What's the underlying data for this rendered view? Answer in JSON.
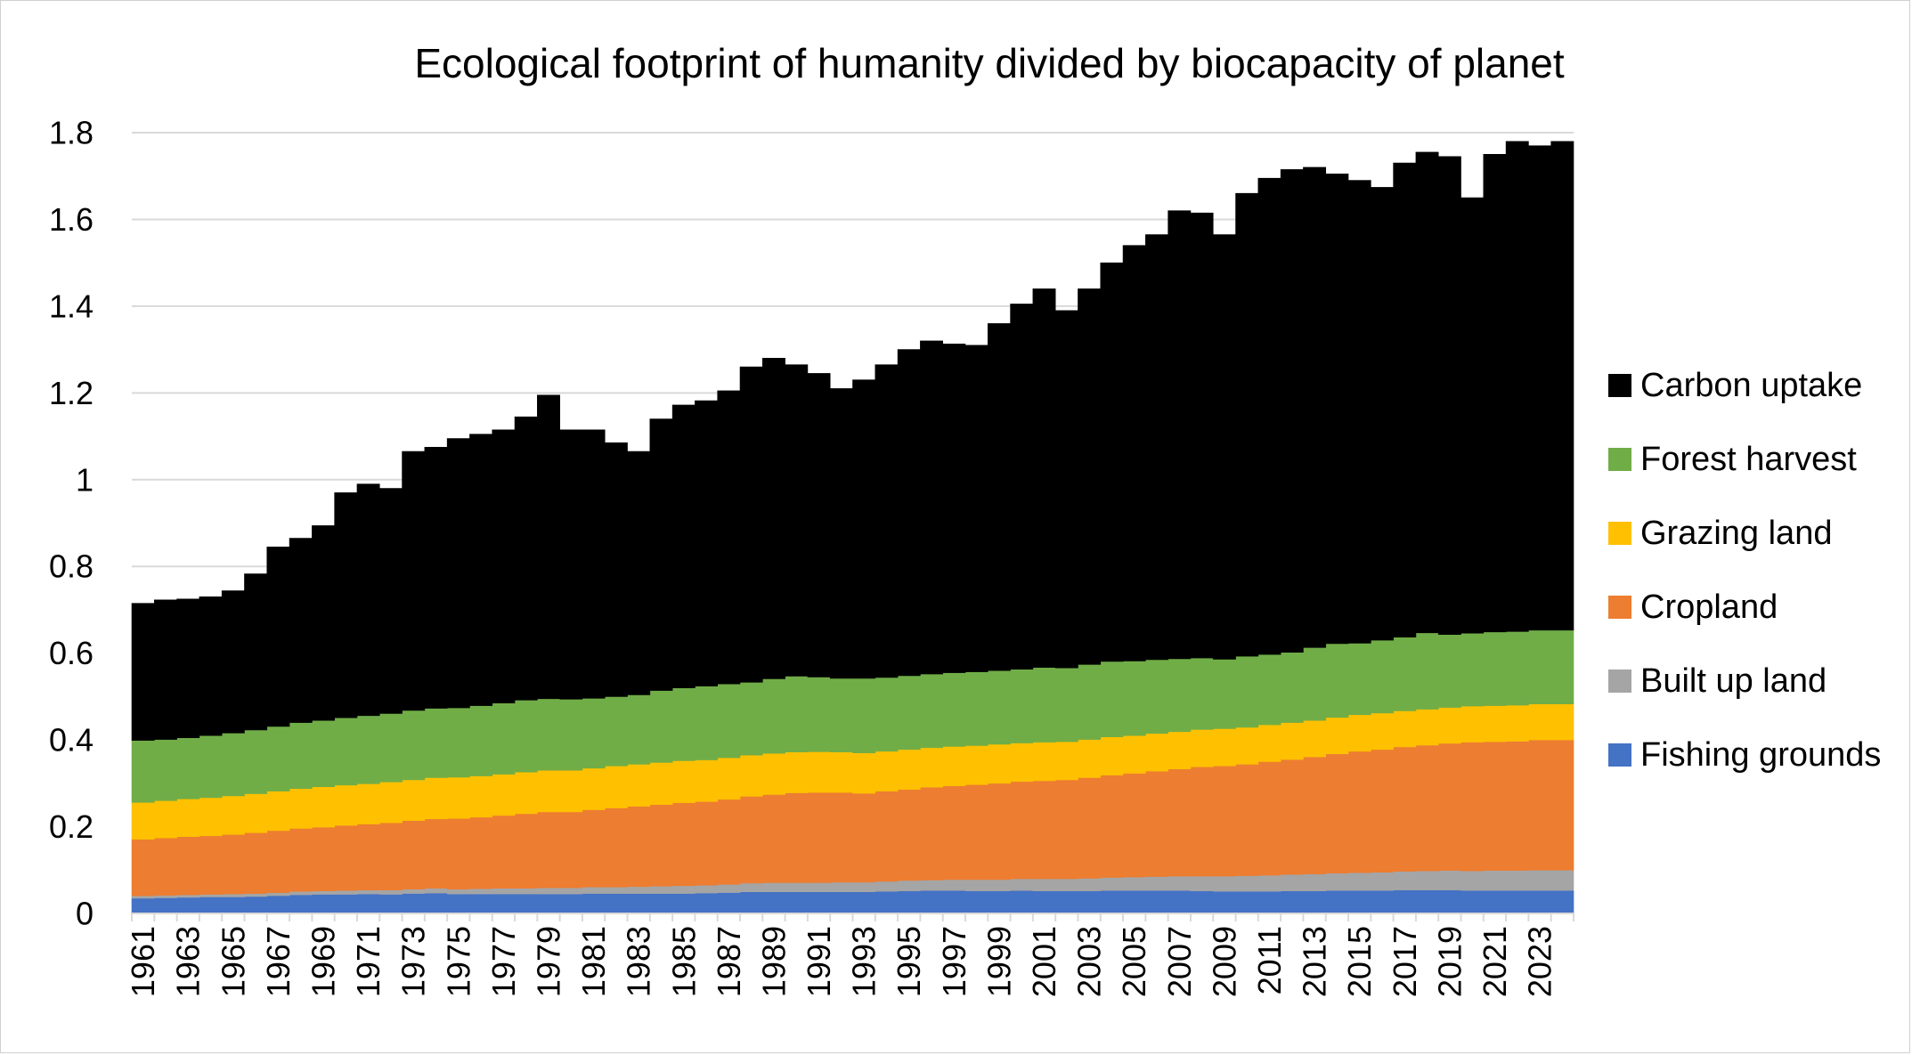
{
  "chart_data": {
    "type": "area",
    "stacked": true,
    "title": "Ecological footprint of humanity divided by biocapacity of planet",
    "xlabel": "",
    "ylabel": "",
    "ylim": [
      0,
      1.8
    ],
    "yticks": [
      0,
      0.2,
      0.4,
      0.6,
      0.8,
      1,
      1.2,
      1.4,
      1.6,
      1.8
    ],
    "ytick_labels": [
      "0",
      "0.2",
      "0.4",
      "0.6",
      "0.8",
      "1",
      "1.2",
      "1.4",
      "1.6",
      "1.8"
    ],
    "grid": "horizontal",
    "legend_position": "right",
    "x": [
      1961,
      1962,
      1963,
      1964,
      1965,
      1966,
      1967,
      1968,
      1969,
      1970,
      1971,
      1972,
      1973,
      1974,
      1975,
      1976,
      1977,
      1978,
      1979,
      1980,
      1981,
      1982,
      1983,
      1984,
      1985,
      1986,
      1987,
      1988,
      1989,
      1990,
      1991,
      1992,
      1993,
      1994,
      1995,
      1996,
      1997,
      1998,
      1999,
      2000,
      2001,
      2002,
      2003,
      2004,
      2005,
      2006,
      2007,
      2008,
      2009,
      2010,
      2011,
      2012,
      2013,
      2014,
      2015,
      2016,
      2017,
      2018,
      2019,
      2020,
      2021,
      2022,
      2023,
      2024
    ],
    "xtick_labels": [
      "1961",
      "1963",
      "1965",
      "1967",
      "1969",
      "1971",
      "1973",
      "1975",
      "1977",
      "1979",
      "1981",
      "1983",
      "1985",
      "1987",
      "1989",
      "1991",
      "1993",
      "1995",
      "1997",
      "1999",
      "2001",
      "2003",
      "2005",
      "2007",
      "2009",
      "2011",
      "2013",
      "2015",
      "2017",
      "2019",
      "2021",
      "2023"
    ],
    "series": [
      {
        "name": "Fishing grounds",
        "color": "#4472C4",
        "values": [
          0.035,
          0.036,
          0.037,
          0.038,
          0.038,
          0.039,
          0.041,
          0.043,
          0.044,
          0.044,
          0.045,
          0.044,
          0.046,
          0.047,
          0.045,
          0.045,
          0.045,
          0.045,
          0.045,
          0.045,
          0.046,
          0.046,
          0.046,
          0.046,
          0.046,
          0.047,
          0.048,
          0.05,
          0.05,
          0.05,
          0.05,
          0.05,
          0.05,
          0.051,
          0.052,
          0.053,
          0.053,
          0.052,
          0.052,
          0.053,
          0.052,
          0.052,
          0.052,
          0.053,
          0.053,
          0.053,
          0.053,
          0.052,
          0.051,
          0.051,
          0.051,
          0.052,
          0.052,
          0.053,
          0.053,
          0.053,
          0.054,
          0.054,
          0.054,
          0.053,
          0.053,
          0.053,
          0.053,
          0.053
        ]
      },
      {
        "name": "Built up land",
        "color": "#A5A5A5",
        "values": [
          0.006,
          0.006,
          0.006,
          0.006,
          0.007,
          0.007,
          0.007,
          0.008,
          0.008,
          0.009,
          0.009,
          0.01,
          0.01,
          0.011,
          0.011,
          0.012,
          0.013,
          0.013,
          0.014,
          0.014,
          0.015,
          0.015,
          0.016,
          0.017,
          0.018,
          0.018,
          0.019,
          0.02,
          0.021,
          0.021,
          0.021,
          0.022,
          0.022,
          0.023,
          0.024,
          0.024,
          0.025,
          0.026,
          0.026,
          0.027,
          0.028,
          0.028,
          0.029,
          0.03,
          0.031,
          0.032,
          0.033,
          0.034,
          0.035,
          0.036,
          0.037,
          0.038,
          0.039,
          0.04,
          0.041,
          0.042,
          0.043,
          0.044,
          0.045,
          0.045,
          0.046,
          0.046,
          0.047,
          0.047
        ]
      },
      {
        "name": "Cropland",
        "color": "#ED7D31",
        "values": [
          0.13,
          0.132,
          0.134,
          0.135,
          0.137,
          0.14,
          0.143,
          0.145,
          0.147,
          0.15,
          0.152,
          0.155,
          0.158,
          0.16,
          0.163,
          0.165,
          0.168,
          0.172,
          0.175,
          0.175,
          0.178,
          0.182,
          0.185,
          0.188,
          0.191,
          0.193,
          0.196,
          0.2,
          0.203,
          0.207,
          0.208,
          0.207,
          0.205,
          0.208,
          0.21,
          0.214,
          0.216,
          0.219,
          0.222,
          0.224,
          0.226,
          0.228,
          0.232,
          0.236,
          0.239,
          0.243,
          0.247,
          0.252,
          0.254,
          0.257,
          0.262,
          0.265,
          0.27,
          0.275,
          0.28,
          0.283,
          0.287,
          0.29,
          0.293,
          0.297,
          0.297,
          0.298,
          0.3,
          0.3
        ]
      },
      {
        "name": "Grazing land",
        "color": "#FFC000",
        "values": [
          0.085,
          0.086,
          0.087,
          0.088,
          0.089,
          0.09,
          0.091,
          0.092,
          0.093,
          0.093,
          0.093,
          0.094,
          0.094,
          0.095,
          0.095,
          0.095,
          0.095,
          0.096,
          0.096,
          0.096,
          0.096,
          0.097,
          0.097,
          0.097,
          0.097,
          0.096,
          0.096,
          0.095,
          0.095,
          0.094,
          0.094,
          0.093,
          0.093,
          0.092,
          0.092,
          0.091,
          0.091,
          0.09,
          0.09,
          0.089,
          0.089,
          0.088,
          0.088,
          0.088,
          0.087,
          0.087,
          0.086,
          0.086,
          0.086,
          0.085,
          0.085,
          0.085,
          0.084,
          0.084,
          0.084,
          0.084,
          0.083,
          0.083,
          0.083,
          0.083,
          0.083,
          0.083,
          0.083,
          0.083
        ]
      },
      {
        "name": "Forest harvest",
        "color": "#70AD47",
        "values": [
          0.143,
          0.141,
          0.141,
          0.143,
          0.145,
          0.147,
          0.149,
          0.152,
          0.153,
          0.155,
          0.157,
          0.158,
          0.16,
          0.16,
          0.16,
          0.162,
          0.164,
          0.166,
          0.165,
          0.164,
          0.161,
          0.16,
          0.16,
          0.166,
          0.168,
          0.17,
          0.17,
          0.168,
          0.172,
          0.175,
          0.172,
          0.17,
          0.172,
          0.17,
          0.17,
          0.17,
          0.17,
          0.17,
          0.17,
          0.17,
          0.172,
          0.17,
          0.173,
          0.174,
          0.172,
          0.17,
          0.168,
          0.165,
          0.16,
          0.164,
          0.162,
          0.162,
          0.168,
          0.17,
          0.165,
          0.168,
          0.17,
          0.176,
          0.168,
          0.168,
          0.17,
          0.17,
          0.17,
          0.17
        ]
      },
      {
        "name": "Carbon uptake",
        "color": "#000000",
        "values": [
          0.316,
          0.322,
          0.32,
          0.32,
          0.328,
          0.36,
          0.414,
          0.425,
          0.449,
          0.519,
          0.534,
          0.519,
          0.597,
          0.602,
          0.621,
          0.626,
          0.63,
          0.653,
          0.7,
          0.621,
          0.619,
          0.585,
          0.561,
          0.626,
          0.652,
          0.658,
          0.676,
          0.727,
          0.739,
          0.718,
          0.7,
          0.668,
          0.688,
          0.721,
          0.752,
          0.768,
          0.758,
          0.753,
          0.8,
          0.842,
          0.873,
          0.824,
          0.866,
          0.919,
          0.958,
          0.98,
          1.033,
          1.026,
          0.979,
          1.067,
          1.098,
          1.113,
          1.107,
          1.083,
          1.067,
          1.044,
          1.093,
          1.108,
          1.102,
          1.004,
          1.101,
          1.13,
          1.117,
          1.127
        ]
      }
    ]
  }
}
